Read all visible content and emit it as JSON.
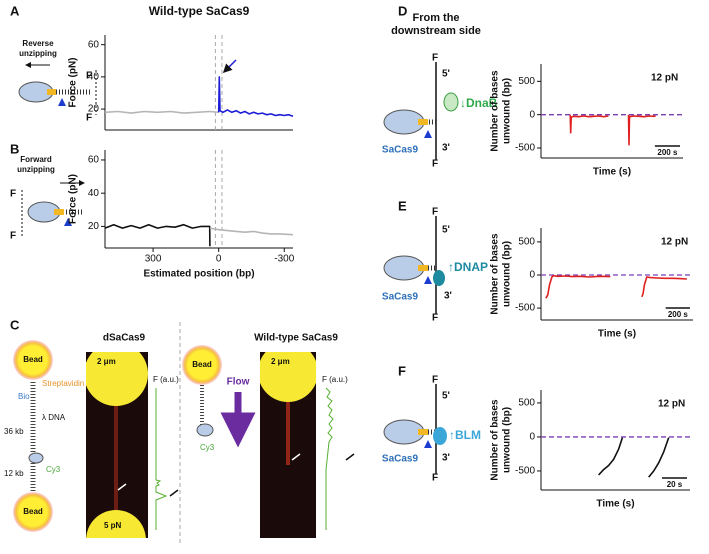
{
  "panel_labels": [
    "A",
    "B",
    "C",
    "D",
    "E",
    "F"
  ],
  "diagram_A": {
    "caption": [
      "Reverse",
      "unzipping"
    ],
    "force_top": "F",
    "force_bottom": "F"
  },
  "diagram_B": {
    "caption": [
      "Forward",
      "unzipping"
    ],
    "force_top": "F",
    "force_bottom": "F"
  },
  "panel_D_heading": [
    "From the",
    "downstream side"
  ],
  "diagram_D": {
    "force_top": "F",
    "end_top": "5'",
    "protein": "↓DnaB",
    "cas9": "SaCas9",
    "end_bottom": "3'",
    "force_bottom": "F"
  },
  "diagram_E": {
    "force_top": "F",
    "end_top": "5'",
    "protein": "↑DNAP",
    "cas9": "SaCas9",
    "end_bottom": "3'",
    "force_bottom": "F"
  },
  "diagram_F": {
    "force_top": "F",
    "end_top": "5'",
    "protein": "↑BLM",
    "cas9": "SaCas9",
    "end_bottom": "3'",
    "force_bottom": "F"
  },
  "panel_C": {
    "left_title": "dSaCas9",
    "right_title": "Wild-type SaCas9",
    "bead_top": "Bead",
    "streptavidin": "Streptavidin",
    "bio": "Bio",
    "dna": "λ DNA",
    "length_top": "36 kb",
    "length_bottom": "12 kb",
    "dye": "Cy3",
    "bead_bottom": "Bead",
    "scale_left": "2 μm",
    "force_axis_left": "F (a.u.)",
    "force_value": "5 pN",
    "bead_right": "Bead",
    "flow": "Flow",
    "dye_right": "Cy3",
    "scale_right": "2 μm",
    "force_axis_right": "F (a.u.)"
  },
  "chart_data": [
    {
      "type": "line",
      "title": "Wild-type SaCas9",
      "ylabel": [
        "Force (pN)"
      ],
      "x": [
        520,
        460,
        400,
        340,
        280,
        220,
        160,
        100,
        40,
        0,
        -3,
        -6,
        -20,
        -40,
        -60,
        -80,
        -100,
        -120,
        -140,
        -160,
        -180,
        -200,
        -220,
        -240,
        -260,
        -280,
        -300,
        -320,
        -340
      ],
      "series": [
        {
          "color": "#b5b5b5",
          "values": [
            18,
            18.5,
            17.5,
            18.5,
            18,
            18.5,
            17.5,
            18,
            18.5,
            18,
            null,
            null,
            null,
            null,
            null,
            null,
            null,
            null,
            null,
            null,
            null,
            null,
            null,
            null,
            null,
            null,
            null,
            null,
            null
          ]
        },
        {
          "color": "#1c1cd8",
          "values": [
            null,
            null,
            null,
            null,
            null,
            null,
            null,
            null,
            null,
            18,
            40,
            19,
            18,
            19.5,
            18,
            19,
            17.5,
            18.5,
            17,
            18,
            17,
            17.5,
            16.5,
            17,
            16,
            16.5,
            16,
            16.5,
            15.5
          ]
        }
      ],
      "xlim": [
        520,
        -340
      ],
      "ylim": [
        7,
        66
      ],
      "yticks": [
        20,
        40,
        60
      ],
      "vlines": [
        15,
        -15
      ]
    },
    {
      "type": "line",
      "ylabel": [
        "Force (pN)"
      ],
      "xlabel": "Estimated position (bp)",
      "x": [
        520,
        480,
        440,
        400,
        360,
        320,
        280,
        240,
        200,
        160,
        120,
        80,
        41,
        40,
        0,
        -40,
        -80,
        -120,
        -160,
        -200,
        -240,
        -280,
        -340
      ],
      "series": [
        {
          "color": "#111111",
          "values": [
            19,
            21,
            19,
            20.5,
            19,
            21,
            19,
            20,
            19.5,
            21,
            19,
            20,
            20,
            8,
            null,
            null,
            null,
            null,
            null,
            null,
            null,
            null,
            null
          ]
        },
        {
          "color": "#b5b5b5",
          "values": [
            null,
            null,
            null,
            null,
            null,
            null,
            null,
            null,
            null,
            null,
            null,
            null,
            null,
            19,
            18,
            17.5,
            17,
            16.5,
            17,
            16,
            15.5,
            15.5,
            15
          ]
        }
      ],
      "xlim": [
        520,
        -340
      ],
      "ylim": [
        7,
        66
      ],
      "xticks": [
        300,
        0,
        -300
      ],
      "yticks": [
        20,
        40,
        60
      ],
      "vlines": [
        15,
        -15
      ]
    },
    {
      "type": "line",
      "ylabel": [
        "Number of bases",
        "unwound (bp)"
      ],
      "xlabel": "Time (s)",
      "annotation": "12 pN",
      "x": [
        232,
        236,
        240,
        260,
        300,
        340,
        380,
        420,
        460,
        500,
        536,
        600,
        696,
        700,
        704,
        740,
        780,
        820,
        860,
        900,
        912
      ],
      "series": [
        {
          "color": "#e02020",
          "values": [
            0,
            -270,
            -40,
            -25,
            -30,
            -20,
            -30,
            -25,
            -20,
            -30,
            -20,
            null,
            0,
            -450,
            -30,
            -20,
            -25,
            -30,
            -20,
            -25,
            -20
          ]
        }
      ],
      "xlim": [
        0,
        1130
      ],
      "ylim": [
        -650,
        760
      ],
      "yticks": [
        500,
        0,
        -500
      ],
      "hline": 0,
      "hline_color": "#7b3fb3",
      "scalebar": {
        "value": 200,
        "label": "200 s"
      }
    },
    {
      "type": "line",
      "ylabel": [
        "Number of bases",
        "unwound (bp)"
      ],
      "xlabel": "Time (s)",
      "annotation": "12 pN",
      "x": [
        40,
        56,
        70,
        90,
        100,
        140,
        200,
        260,
        320,
        400,
        480,
        570,
        700,
        830,
        840,
        850,
        870,
        900,
        960,
        1020,
        1080,
        1140,
        1200
      ],
      "series": [
        {
          "color": "#e02020",
          "values": [
            -350,
            -300,
            -150,
            -30,
            -10,
            -20,
            -15,
            -25,
            -20,
            -30,
            -20,
            -25,
            null,
            -330,
            -280,
            -150,
            -30,
            -40,
            -45,
            -50,
            -50,
            -55,
            -60
          ]
        }
      ],
      "xlim": [
        0,
        1250
      ],
      "ylim": [
        -680,
        710
      ],
      "yticks": [
        500,
        0,
        -500
      ],
      "hline": 0,
      "hline_color": "#7b3fb3",
      "scalebar": {
        "value": 200,
        "label": "200 s"
      }
    },
    {
      "type": "line",
      "ylabel": [
        "Number of bases",
        "unwound (bp)"
      ],
      "xlabel": "Time (s)",
      "annotation": "12 pN",
      "x": [
        46,
        50,
        54,
        58,
        62,
        65,
        75,
        86,
        90,
        94,
        98,
        102
      ],
      "series": [
        {
          "color": "#111111",
          "values": [
            -560,
            -480,
            -420,
            -330,
            -180,
            -10,
            null,
            -590,
            -500,
            -380,
            -220,
            -10
          ]
        }
      ],
      "xlim": [
        0,
        119
      ],
      "ylim": [
        -780,
        690
      ],
      "yticks": [
        500,
        0,
        -500
      ],
      "hline": 0,
      "hline_color": "#7b3fb3",
      "scalebar": {
        "value": 20,
        "label": "20 s"
      }
    }
  ]
}
